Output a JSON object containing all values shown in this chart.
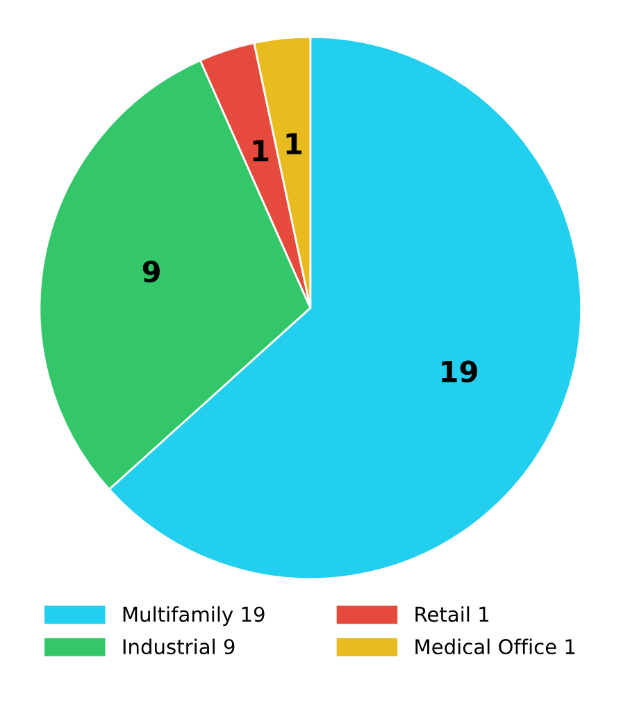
{
  "chart_data": {
    "type": "pie",
    "categories": [
      "Multifamily 19",
      "Industrial 9",
      "Retail 1",
      "Medical Office 1"
    ],
    "values": [
      19,
      9,
      1,
      1
    ],
    "colors": [
      "#22cfee",
      "#33c76a",
      "#e64a3c",
      "#e8bc1e"
    ],
    "data_labels": true,
    "legend": "bottom"
  }
}
